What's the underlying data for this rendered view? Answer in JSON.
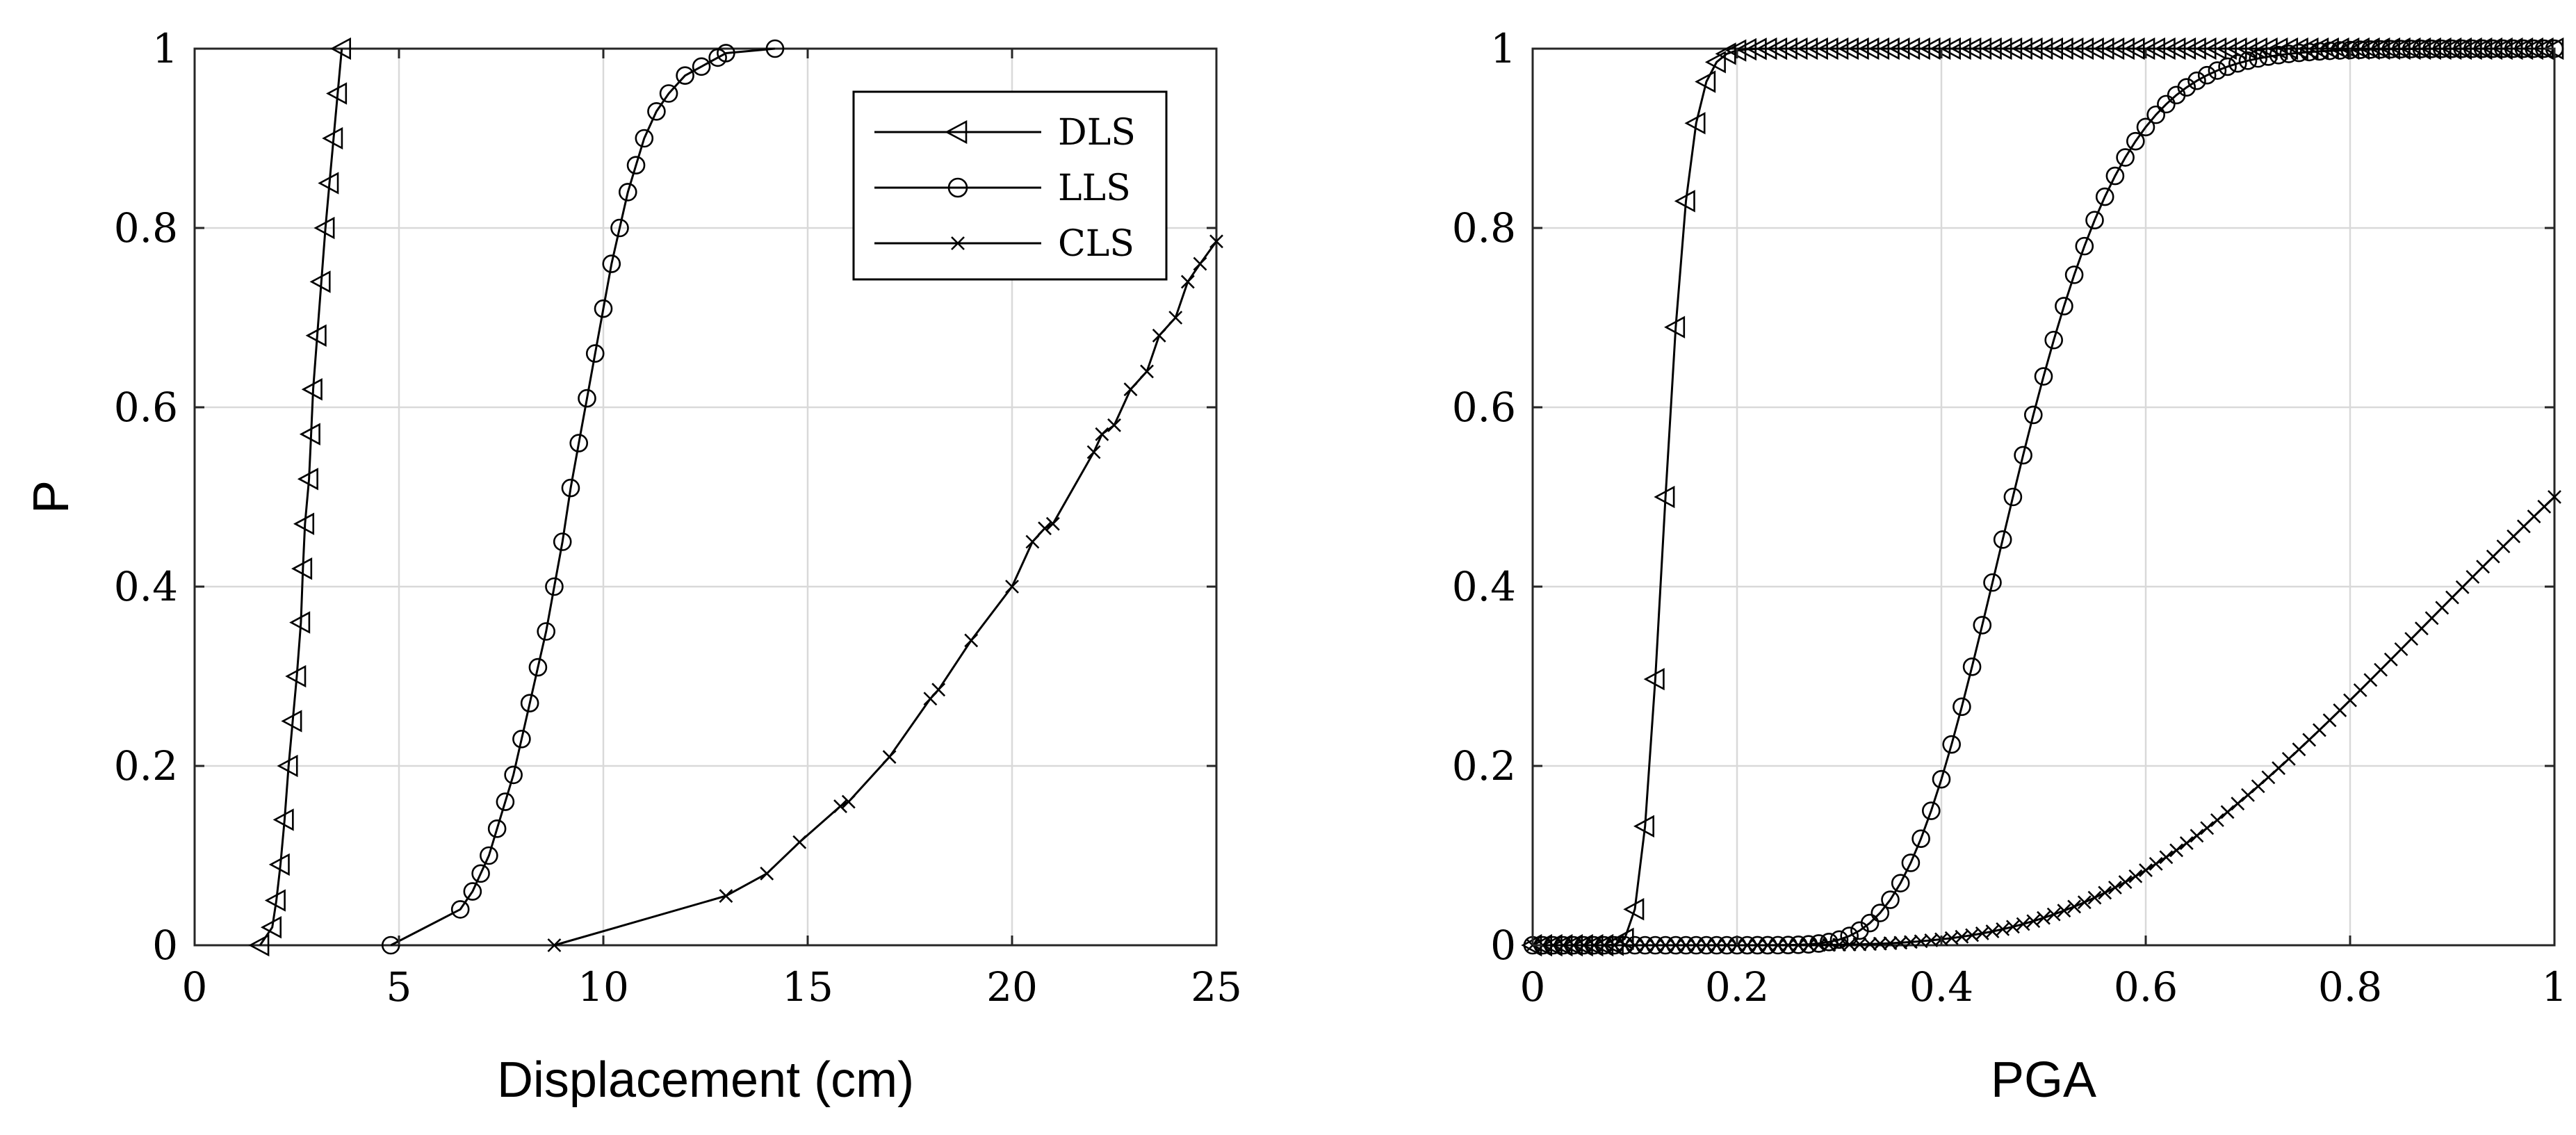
{
  "chart_data": [
    {
      "type": "line",
      "title": "",
      "xlabel": "Displacement (cm)",
      "ylabel": "P",
      "xlim": [
        0,
        25
      ],
      "ylim": [
        0,
        1
      ],
      "xticks": [
        0,
        5,
        10,
        15,
        20,
        25
      ],
      "yticks": [
        0,
        0.2,
        0.4,
        0.6,
        0.8,
        1
      ],
      "xtick_labels": [
        "0",
        "5",
        "10",
        "15",
        "20",
        "25"
      ],
      "ytick_labels": [
        "0",
        "0.2",
        "0.4",
        "0.6",
        "0.8",
        "1"
      ],
      "grid": true,
      "legend": {
        "position": "top-right",
        "entries": [
          "DLS",
          "LLS",
          "CLS"
        ]
      },
      "series": [
        {
          "name": "DLS",
          "marker": "triangle-left",
          "x": [
            1.6,
            1.9,
            2.0,
            2.1,
            2.2,
            2.3,
            2.4,
            2.5,
            2.6,
            2.65,
            2.7,
            2.8,
            2.85,
            2.9,
            3.0,
            3.1,
            3.2,
            3.3,
            3.4,
            3.5,
            3.6
          ],
          "y": [
            0.0,
            0.02,
            0.05,
            0.09,
            0.14,
            0.2,
            0.25,
            0.3,
            0.36,
            0.42,
            0.47,
            0.52,
            0.57,
            0.62,
            0.68,
            0.74,
            0.8,
            0.85,
            0.9,
            0.95,
            1.0
          ]
        },
        {
          "name": "LLS",
          "marker": "circle",
          "x": [
            4.8,
            6.5,
            6.8,
            7.0,
            7.2,
            7.4,
            7.6,
            7.8,
            8.0,
            8.2,
            8.4,
            8.6,
            8.8,
            9.0,
            9.2,
            9.4,
            9.6,
            9.8,
            10.0,
            10.2,
            10.4,
            10.6,
            10.8,
            11.0,
            11.3,
            11.6,
            12.0,
            12.4,
            12.8,
            13.0,
            14.2
          ],
          "y": [
            0.0,
            0.04,
            0.06,
            0.08,
            0.1,
            0.13,
            0.16,
            0.19,
            0.23,
            0.27,
            0.31,
            0.35,
            0.4,
            0.45,
            0.51,
            0.56,
            0.61,
            0.66,
            0.71,
            0.76,
            0.8,
            0.84,
            0.87,
            0.9,
            0.93,
            0.95,
            0.97,
            0.98,
            0.99,
            0.995,
            1.0
          ]
        },
        {
          "name": "CLS",
          "marker": "x",
          "x": [
            8.8,
            13.0,
            14.0,
            14.8,
            15.8,
            16.0,
            17.0,
            18.0,
            18.2,
            19.0,
            20.0,
            20.5,
            20.8,
            21.0,
            22.0,
            22.2,
            22.5,
            22.9,
            23.3,
            23.6,
            24.0,
            24.3,
            24.6,
            25.0
          ],
          "y": [
            0.0,
            0.055,
            0.08,
            0.115,
            0.155,
            0.16,
            0.21,
            0.275,
            0.285,
            0.34,
            0.4,
            0.45,
            0.465,
            0.47,
            0.55,
            0.57,
            0.58,
            0.62,
            0.64,
            0.68,
            0.7,
            0.74,
            0.76,
            0.785
          ]
        }
      ]
    },
    {
      "type": "line",
      "title": "",
      "xlabel": "PGA",
      "ylabel": "",
      "xlim": [
        0,
        1
      ],
      "ylim": [
        0,
        1
      ],
      "xticks": [
        0,
        0.2,
        0.4,
        0.6,
        0.8,
        1
      ],
      "yticks": [
        0,
        0.2,
        0.4,
        0.6,
        0.8,
        1
      ],
      "xtick_labels": [
        "0",
        "0.2",
        "0.4",
        "0.6",
        "0.8",
        "1"
      ],
      "ytick_labels": [
        "0",
        "0.2",
        "0.4",
        "0.6",
        "0.8",
        "1"
      ],
      "grid": true,
      "series": [
        {
          "name": "DLS",
          "marker": "triangle-left",
          "x_start": 0.0,
          "x_end": 1.0,
          "x_step": 0.01,
          "lognormal_cdf": {
            "median": 0.13,
            "beta": 0.15
          }
        },
        {
          "name": "LLS",
          "marker": "circle",
          "x_start": 0.0,
          "x_end": 1.0,
          "x_step": 0.01,
          "lognormal_cdf": {
            "median": 0.47,
            "beta": 0.18
          }
        },
        {
          "name": "CLS",
          "marker": "x",
          "x_start": 0.0,
          "x_end": 1.0,
          "x_step": 0.01,
          "lognormal_cdf": {
            "median": 1.0,
            "beta": 0.37
          }
        }
      ]
    }
  ]
}
